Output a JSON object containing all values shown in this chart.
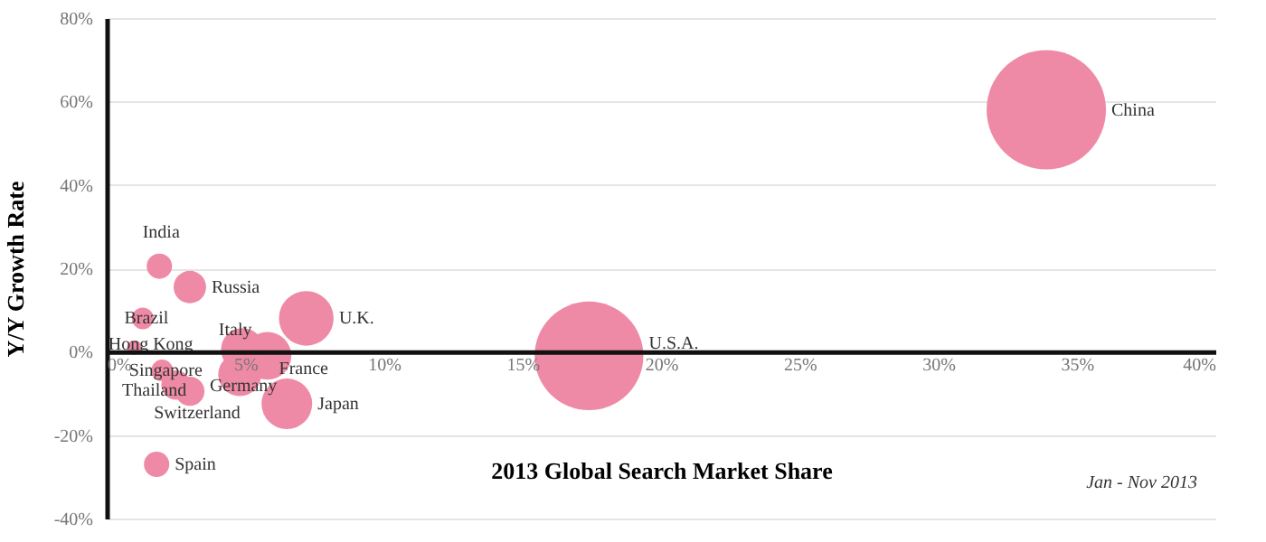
{
  "chart_data": {
    "type": "bubble",
    "xlabel": "2013 Global Search Market Share",
    "ylabel": "Y/Y Growth Rate",
    "annotations": [
      "Jan - Nov 2013"
    ],
    "xlim": [
      0,
      40
    ],
    "ylim": [
      -40,
      80
    ],
    "xticks": [
      {
        "value": 0,
        "label": "0%"
      },
      {
        "value": 5,
        "label": "5%"
      },
      {
        "value": 10,
        "label": "10%"
      },
      {
        "value": 15,
        "label": "15%"
      },
      {
        "value": 20,
        "label": "20%"
      },
      {
        "value": 25,
        "label": "25%"
      },
      {
        "value": 30,
        "label": "30%"
      },
      {
        "value": 35,
        "label": "35%"
      },
      {
        "value": 40,
        "label": "40%"
      }
    ],
    "yticks": [
      {
        "value": -40,
        "label": "-40%"
      },
      {
        "value": -20,
        "label": "-20%"
      },
      {
        "value": 0,
        "label": "0%"
      },
      {
        "value": 20,
        "label": "20%"
      },
      {
        "value": 40,
        "label": "40%"
      },
      {
        "value": 60,
        "label": "60%"
      },
      {
        "value": 80,
        "label": "80%"
      }
    ],
    "grid": "y",
    "series": [
      {
        "name": "China",
        "color": "#ee8aa6",
        "x": [
          33.9
        ],
        "values": [
          58
        ],
        "sizes": [
          1
        ]
      },
      {
        "name": "U.S.A.",
        "color": "#ee8aa6",
        "x": [
          17.4
        ],
        "values": [
          -1
        ],
        "sizes": [
          0.83
        ]
      },
      {
        "name": "U.K.",
        "color": "#ee8aa6",
        "x": [
          7.2
        ],
        "values": [
          8
        ],
        "sizes": [
          0.21
        ]
      },
      {
        "name": "Japan",
        "color": "#ee8aa6",
        "x": [
          6.5
        ],
        "values": [
          -12.5
        ],
        "sizes": [
          0.18
        ]
      },
      {
        "name": "France",
        "color": "#ee8aa6",
        "x": [
          5.8
        ],
        "values": [
          -1
        ],
        "sizes": [
          0.16
        ]
      },
      {
        "name": "Italy",
        "color": "#ee8aa6",
        "x": [
          4.9
        ],
        "values": [
          0.5
        ],
        "sizes": [
          0.13
        ]
      },
      {
        "name": "Germany",
        "color": "#ee8aa6",
        "x": [
          4.8
        ],
        "values": [
          -5.5
        ],
        "sizes": [
          0.13
        ]
      },
      {
        "name": "Russia",
        "color": "#ee8aa6",
        "x": [
          3
        ],
        "values": [
          15.5
        ],
        "sizes": [
          0.074
        ]
      },
      {
        "name": "India",
        "color": "#ee8aa6",
        "x": [
          1.9
        ],
        "values": [
          20.5
        ],
        "sizes": [
          0.045
        ]
      },
      {
        "name": "Brazil",
        "color": "#ee8aa6",
        "x": [
          1.3
        ],
        "values": [
          8
        ],
        "sizes": [
          0.033
        ]
      },
      {
        "name": "Hong Kong",
        "color": "#ee8aa6",
        "x": [
          1
        ],
        "values": [
          1
        ],
        "sizes": [
          0.015
        ]
      },
      {
        "name": "Singapore",
        "color": "#ee8aa6",
        "x": [
          2
        ],
        "values": [
          -4.5
        ],
        "sizes": [
          0.033
        ]
      },
      {
        "name": "Thailand",
        "color": "#ee8aa6",
        "x": [
          2.5
        ],
        "values": [
          -8
        ],
        "sizes": [
          0.06
        ]
      },
      {
        "name": "Switzerland",
        "color": "#ee8aa6",
        "x": [
          3
        ],
        "values": [
          -9.5
        ],
        "sizes": [
          0.06
        ]
      },
      {
        "name": "Spain",
        "color": "#ee8aa6",
        "x": [
          1.8
        ],
        "values": [
          -27
        ],
        "sizes": [
          0.045
        ]
      }
    ]
  }
}
